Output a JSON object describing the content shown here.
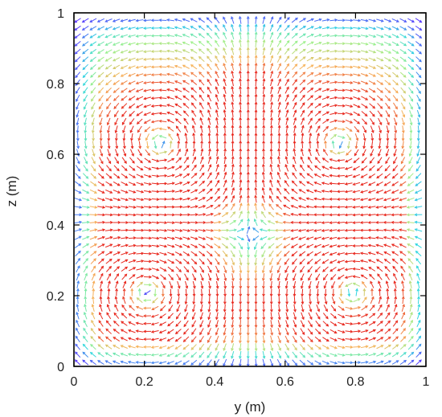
{
  "chart_data": {
    "type": "vector-field",
    "xlabel": "y (m)",
    "ylabel": "z (m)",
    "xlim": [
      0,
      1
    ],
    "ylim": [
      0,
      1
    ],
    "xticks": [
      "0",
      "0.2",
      "0.4",
      "0.6",
      "0.8",
      "1"
    ],
    "yticks": [
      "0",
      "0.2",
      "0.4",
      "0.6",
      "0.8",
      "1"
    ],
    "grid": false,
    "legend": "none",
    "colormap": [
      "#5a2dff",
      "#2fd7e0",
      "#9df08a",
      "#f6b35a",
      "#e8281e"
    ],
    "field": {
      "description_of_structure": "two large counter-rotating cells in upper half, two smaller vortex cores near the bottom",
      "vortex_centers": [
        {
          "y": 0.21,
          "z": 0.22,
          "strength": -1
        },
        {
          "y": 0.79,
          "z": 0.22,
          "strength": 1
        },
        {
          "y": 0.25,
          "z": 0.62,
          "strength": 1
        },
        {
          "y": 0.75,
          "z": 0.62,
          "strength": -1
        }
      ]
    }
  }
}
